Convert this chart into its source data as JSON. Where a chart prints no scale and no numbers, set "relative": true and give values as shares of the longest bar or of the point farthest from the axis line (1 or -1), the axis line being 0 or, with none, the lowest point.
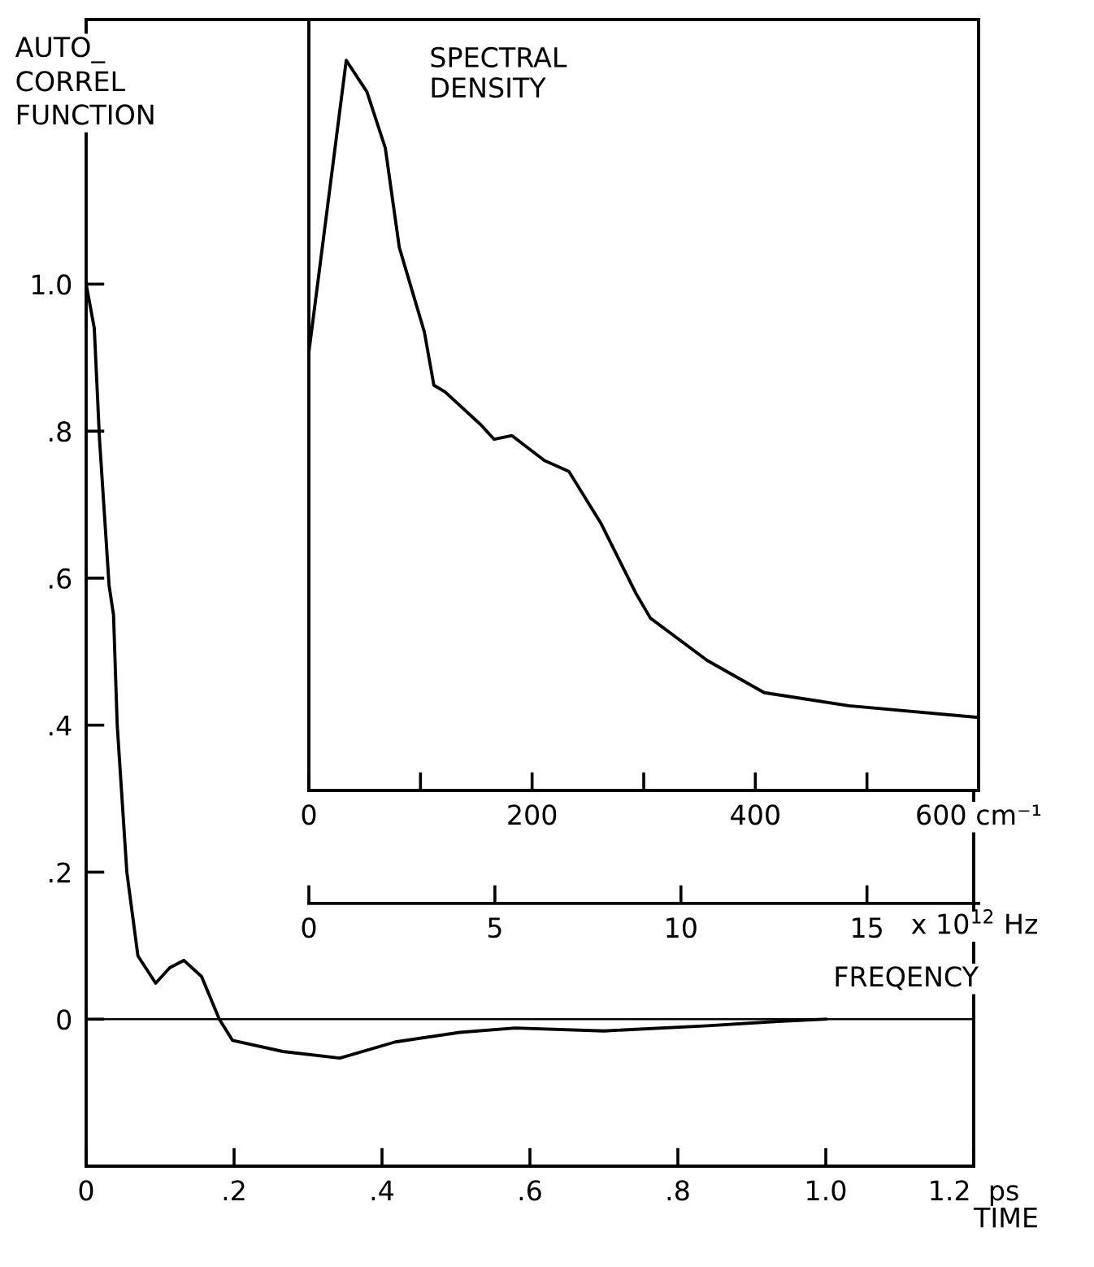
{
  "chart_data": [
    {
      "type": "line",
      "ylabel": "AUTO_\nCORREL\nFUNCTION",
      "xlabel": "TIME",
      "x": [
        0,
        0.011,
        0.018,
        0.031,
        0.037,
        0.042,
        0.055,
        0.07,
        0.094,
        0.113,
        0.132,
        0.156,
        0.18,
        0.198,
        0.266,
        0.343,
        0.418,
        0.505,
        0.58,
        0.7,
        0.84,
        0.935,
        1.0
      ],
      "series": [
        {
          "color": "#000000",
          "values": [
            1.0,
            0.94,
            0.79,
            0.59,
            0.55,
            0.4,
            0.2,
            0.086,
            0.049,
            0.07,
            0.08,
            0.058,
            0.0,
            -0.029,
            -0.044,
            -0.053,
            -0.031,
            -0.018,
            -0.012,
            -0.016,
            -0.009,
            -0.003,
            0.0
          ]
        }
      ],
      "xlim": [
        0,
        1.2
      ],
      "ylim": [
        -0.2,
        1.36
      ],
      "xticks": [
        0,
        {
          "value": 0.2,
          "label": ".2"
        },
        {
          "value": 0.4,
          "label": ".4"
        },
        {
          "value": 0.6,
          "label": ".6"
        },
        {
          "value": 0.8,
          "label": ".8"
        },
        {
          "value": 1.0,
          "label": "1.0"
        },
        {
          "value": 1.2,
          "label": "1.2  ps"
        }
      ],
      "yticks": [
        0,
        {
          "value": 0.2,
          "label": ".2"
        },
        {
          "value": 0.4,
          "label": ".4"
        },
        {
          "value": 0.6,
          "label": ".6"
        },
        {
          "value": 0.8,
          "label": ".8"
        },
        {
          "value": 1.0,
          "label": "1.0"
        }
      ],
      "ref_lines": [
        {
          "axis": "y",
          "value": 0,
          "color": "#000000"
        }
      ]
    },
    {
      "type": "line",
      "title": "SPECTRAL\nDENSITY",
      "relative": true,
      "x": [
        0,
        33.5,
        52,
        68.5,
        81,
        103.5,
        112,
        122,
        154,
        166,
        182,
        211,
        233,
        262,
        293,
        306,
        357,
        408,
        484,
        600
      ],
      "series": [
        {
          "color": "#000000",
          "values": [
            0.6,
            1.0,
            0.957,
            0.88,
            0.744,
            0.628,
            0.555,
            0.546,
            0.501,
            0.481,
            0.486,
            0.452,
            0.437,
            0.365,
            0.27,
            0.236,
            0.178,
            0.134,
            0.116,
            0.1
          ]
        }
      ],
      "xlim": [
        0,
        600
      ],
      "xticks": [
        0,
        {
          "value": 100,
          "label": null
        },
        200,
        {
          "value": 300,
          "label": null
        },
        400,
        {
          "value": 500,
          "label": null
        },
        {
          "value": 600,
          "label": "600 cm⁻¹"
        }
      ],
      "x2lim": [
        0,
        18
      ],
      "x2ticks": [
        0,
        5,
        10,
        15
      ],
      "x2label": "FREQENCY",
      "annotations": [
        "x 10$^{12}$ Hz"
      ],
      "tick_labels": "x"
    }
  ]
}
